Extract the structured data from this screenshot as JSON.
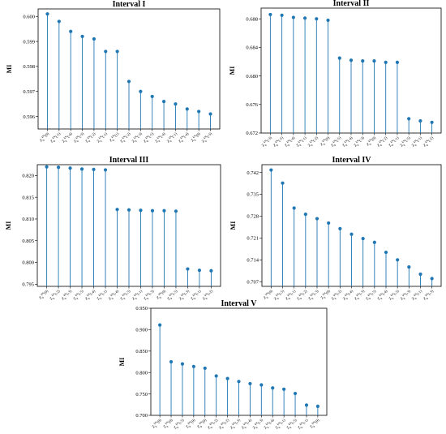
{
  "chart_data": [
    {
      "type": "stem",
      "title": "Interval I",
      "ylabel": "MI",
      "ylim": [
        0.5955,
        0.6003
      ],
      "yticks": [
        0.596,
        0.597,
        0.598,
        0.599,
        0.6
      ],
      "ytick_labels": [
        "0.596",
        "0.597",
        "0.598",
        "0.599",
        "0.600"
      ],
      "categories": [
        "Z_{θ}^{kN}(0)",
        "Z_{θ}^{kN}(-5)",
        "Z_{θ}^{kN}(-4)",
        "Z_{θ}^{kN}(-3)",
        "Z_{θ}^{kN}(-2)",
        "Z_{θ}^{kN}(-1)",
        "Z_{θ}^{kN}(1)",
        "Z_{θ}^{kN}(-2)",
        "Z_{θ}^{kN}(-3)",
        "Z_{θ}^{kN}(-5)",
        "Z_{θ}^{kN}(-4)",
        "Z_{θ}^{kN}(-1)",
        "Z_{θ}^{kN}(-4)",
        "Z_{θ}^{kN}(0)",
        "Z_{θ}^{kN}(-3)"
      ],
      "values": [
        0.6001,
        0.5998,
        0.5994,
        0.5992,
        0.5991,
        0.5986,
        0.5986,
        0.5974,
        0.597,
        0.5968,
        0.5966,
        0.5965,
        0.5963,
        0.5962,
        0.5961
      ]
    },
    {
      "type": "stem",
      "title": "Interval II",
      "ylabel": "MI",
      "ylim": [
        0.672,
        0.6895
      ],
      "yticks": [
        0.672,
        0.676,
        0.68,
        0.684,
        0.688
      ],
      "ytick_labels": [
        "0.672",
        "0.676",
        "0.680",
        "0.684",
        "0.688"
      ],
      "categories": [
        "Z_{θ}^{kN}(-3)",
        "Z_{θ}^{kN}(-5)",
        "Z_{θ}^{kN}(-4)",
        "Z_{θ}^{kN}(-1)",
        "Z_{θ}^{kN}(-2)",
        "Z_{θ}^{kN}(0)",
        "Z_{θ}^{kN}(-5)",
        "Z_{θ}^{kN}(-4)",
        "Z_{θ}^{kN}(-3)",
        "Z_{θ}^{kN}(0)",
        "Z_{θ}^{kN}(-2)",
        "Z_{θ}^{kN}(-1)",
        "Z_{θ}^{kN}(-5)",
        "Z_{θ}^{kN}(-1)",
        "Z_{θ}^{kN}(-2)"
      ],
      "values": [
        0.6886,
        0.6885,
        0.6882,
        0.6881,
        0.688,
        0.6878,
        0.6825,
        0.6822,
        0.6821,
        0.6821,
        0.6819,
        0.6819,
        0.674,
        0.6737,
        0.6735
      ]
    },
    {
      "type": "stem",
      "title": "Interval III",
      "ylabel": "MI",
      "ylim": [
        0.7945,
        0.8225
      ],
      "yticks": [
        0.795,
        0.8,
        0.805,
        0.81,
        0.815,
        0.82
      ],
      "ytick_labels": [
        "0.795",
        "0.800",
        "0.805",
        "0.810",
        "0.815",
        "0.820"
      ],
      "categories": [
        "Z_{θ}^{kN}(0)",
        "Z_{θ}^{kN}(-2)",
        "Z_{θ}^{kN}(-3)",
        "Z_{θ}^{kN}(-5)",
        "Z_{θ}^{kN}(-4)",
        "Z_{θ}^{kN}(-1)",
        "Z_{θ}^{kN}(-4)",
        "Z_{θ}^{kN}(-5)",
        "Z_{θ}^{kN}(-1)",
        "Z_{θ}^{kN}(-3)",
        "Z_{θ}^{kN}(0)",
        "Z_{θ}^{kN}(-5)",
        "Z_{θ}^{kN}(-3)",
        "Z_{θ}^{kN}(-1)",
        "Z_{θ}^{kN}(-2)"
      ],
      "values": [
        0.822,
        0.8219,
        0.8217,
        0.8215,
        0.8214,
        0.8213,
        0.8122,
        0.8121,
        0.812,
        0.8119,
        0.8119,
        0.8118,
        0.7985,
        0.7982,
        0.7981
      ]
    },
    {
      "type": "stem",
      "title": "Interval IV",
      "ylabel": "MI",
      "ylim": [
        0.7055,
        0.7445
      ],
      "yticks": [
        0.707,
        0.714,
        0.721,
        0.728,
        0.735,
        0.742
      ],
      "ytick_labels": [
        "0.707",
        "0.714",
        "0.721",
        "0.728",
        "0.735",
        "0.742"
      ],
      "categories": [
        "Z_{θ}^{kN}(0)",
        "Z_{θ}^{kN}(-5)",
        "Z_{θ}^{kN}(-1)",
        "Z_{θ}^{kN}(-2)",
        "Z_{θ}^{kN}(-3)",
        "Z_{θ}^{kN}(0)",
        "Z_{θ}^{kN}(-2)",
        "Z_{θ}^{kN}(-4)",
        "Z_{θ}^{kN}(-3)",
        "Z_{θ}^{kN}(-5)",
        "Z_{θ}^{kN}(-4)",
        "Z_{θ}^{kN}(-5)",
        "Z_{θ}^{kN}(-3)",
        "Z_{θ}^{kN}(-1)",
        "Z_{θ}^{kN}(-3)"
      ],
      "values": [
        0.7428,
        0.7386,
        0.7306,
        0.7286,
        0.7272,
        0.7258,
        0.724,
        0.7222,
        0.7208,
        0.7196,
        0.7164,
        0.714,
        0.7117,
        0.7094,
        0.708
      ]
    },
    {
      "type": "stem",
      "title": "Interval V",
      "ylabel": "MI",
      "ylim": [
        0.7,
        0.95
      ],
      "yticks": [
        0.7,
        0.75,
        0.8,
        0.85,
        0.9,
        0.95
      ],
      "ytick_labels": [
        "0.700",
        "0.750",
        "0.800",
        "0.850",
        "0.900",
        "0.950"
      ],
      "categories": [
        "Z_{θ}^{kN}(0)",
        "Z_{θ}^{kN}(0)",
        "Z_{θ}^{kN}(-5)",
        "Z_{θ}^{kN}(0)",
        "Z_{θ}^{kN}(0)",
        "Z_{θ}^{kN}(-2)",
        "Z_{θ}^{kN}(-2)",
        "Z_{θ}^{kN}(-3)",
        "Z_{θ}^{kN}(-4)",
        "Z_{θ}^{kN}(-3)",
        "Z_{θ}^{kN}(-4)",
        "Z_{θ}^{kN}(-1)",
        "Z_{θ}^{kN}(-5)",
        "Z_{θ}^{kN}(-1)",
        "Z_{θ}^{kN}(0)"
      ],
      "values": [
        0.911,
        0.825,
        0.82,
        0.814,
        0.81,
        0.792,
        0.786,
        0.779,
        0.774,
        0.771,
        0.764,
        0.761,
        0.751,
        0.724,
        0.721
      ]
    }
  ]
}
